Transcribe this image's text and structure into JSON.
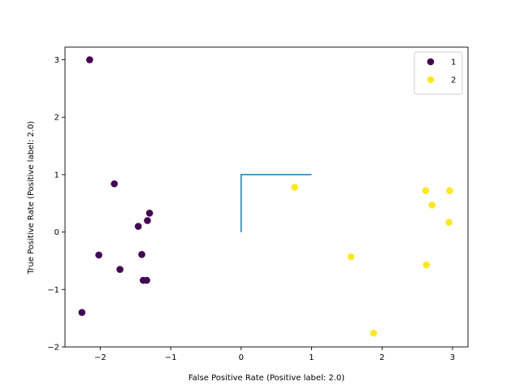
{
  "chart_data": {
    "type": "scatter",
    "xlabel": "False Positive Rate (Positive label: 2.0)",
    "ylabel": "True Positive Rate (Positive label: 2.0)",
    "xlim": [
      -2.5,
      3.22
    ],
    "ylim": [
      -2.0,
      3.22
    ],
    "x_ticks": [
      -2,
      -1,
      0,
      1,
      2,
      3
    ],
    "x_tick_labels": [
      "−2",
      "−1",
      "0",
      "1",
      "2",
      "3"
    ],
    "y_ticks": [
      -2,
      -1,
      0,
      1,
      2,
      3
    ],
    "y_tick_labels": [
      "−2",
      "−1",
      "0",
      "1",
      "2",
      "3"
    ],
    "grid": false,
    "legend_placement": "top-right",
    "line": {
      "color": "#1f77b4",
      "x": [
        0,
        0,
        1
      ],
      "y": [
        0,
        1,
        1
      ]
    },
    "series": [
      {
        "name": "1",
        "color": "#440154",
        "points": [
          {
            "x": -2.15,
            "y": 3.0
          },
          {
            "x": -1.8,
            "y": 0.84
          },
          {
            "x": -1.3,
            "y": 0.33
          },
          {
            "x": -1.33,
            "y": 0.2
          },
          {
            "x": -1.46,
            "y": 0.1
          },
          {
            "x": -2.02,
            "y": -0.4
          },
          {
            "x": -1.41,
            "y": -0.39
          },
          {
            "x": -1.72,
            "y": -0.65
          },
          {
            "x": -1.39,
            "y": -0.84
          },
          {
            "x": -1.34,
            "y": -0.84
          },
          {
            "x": -2.26,
            "y": -1.4
          }
        ]
      },
      {
        "name": "2",
        "color": "#fde725",
        "points": [
          {
            "x": 0.76,
            "y": 0.78
          },
          {
            "x": 2.62,
            "y": 0.72
          },
          {
            "x": 2.96,
            "y": 0.72
          },
          {
            "x": 2.71,
            "y": 0.47
          },
          {
            "x": 2.95,
            "y": 0.17
          },
          {
            "x": 1.56,
            "y": -0.43
          },
          {
            "x": 2.63,
            "y": -0.57
          },
          {
            "x": 1.88,
            "y": -1.76
          }
        ]
      }
    ]
  }
}
